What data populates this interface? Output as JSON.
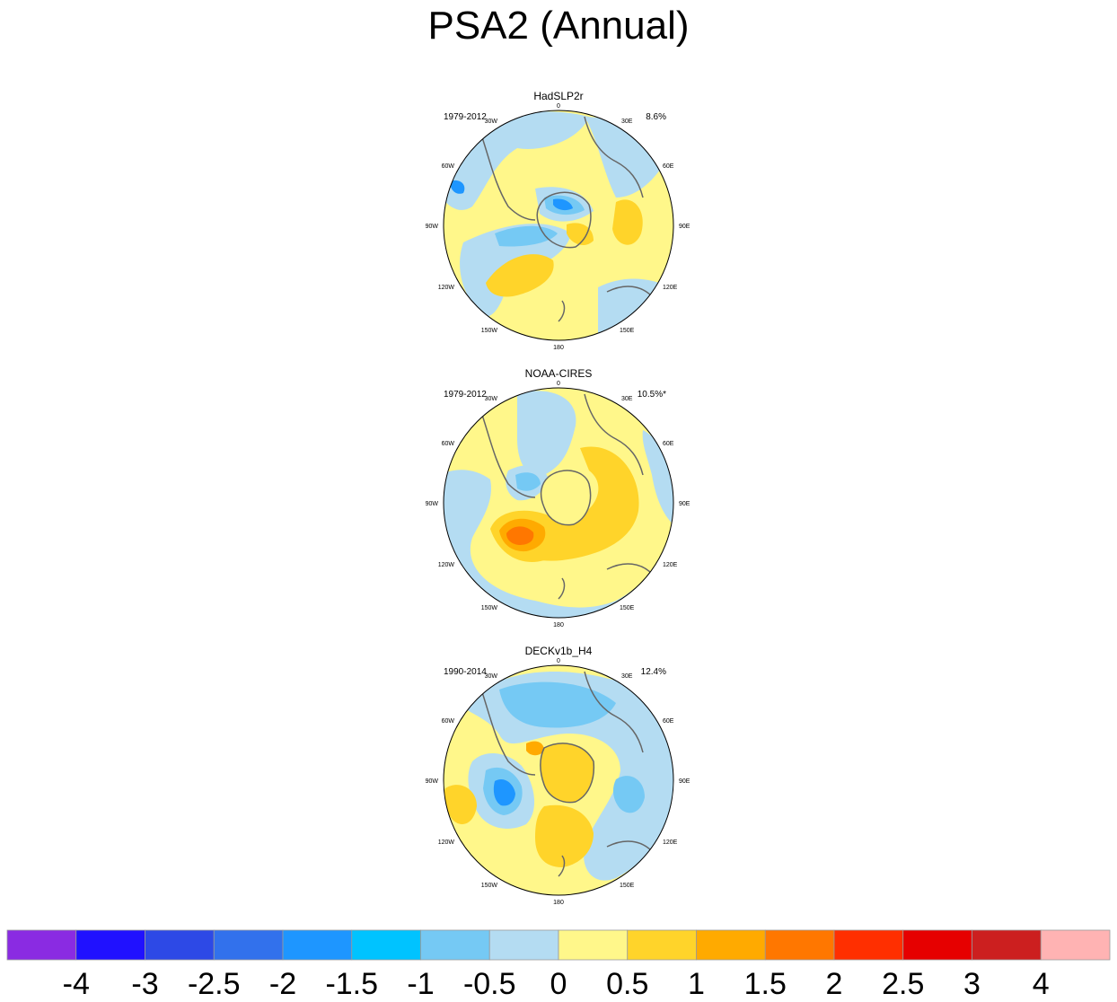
{
  "title": "PSA2 (Annual)",
  "panels": [
    {
      "name": "HadSLP2r",
      "period": "1979-2012",
      "percent": "8.6%"
    },
    {
      "name": "NOAA-CIRES",
      "period": "1979-2012",
      "percent": "10.5%*"
    },
    {
      "name": "DECKv1b_H4",
      "period": "1990-2014",
      "percent": "12.4%"
    }
  ],
  "map_labels": [
    "0",
    "30E",
    "60E",
    "90E",
    "120E",
    "150E",
    "180",
    "150W",
    "120W",
    "90W",
    "60W",
    "30W"
  ],
  "colorbar": {
    "colors": [
      "#8a2be2",
      "#2011ff",
      "#2d49e6",
      "#3271ec",
      "#1e96ff",
      "#00c3ff",
      "#75c9f4",
      "#b4dcf2",
      "#fff78a",
      "#ffd42a",
      "#ffaa00",
      "#ff7700",
      "#ff2f00",
      "#e60000",
      "#cc1f1f",
      "#ffb3b3"
    ],
    "tick_labels": [
      "-4",
      "-3",
      "-2.5",
      "-2",
      "-1.5",
      "-1",
      "-0.5",
      "0",
      "0.5",
      "1",
      "1.5",
      "2",
      "2.5",
      "3",
      "4"
    ]
  }
}
